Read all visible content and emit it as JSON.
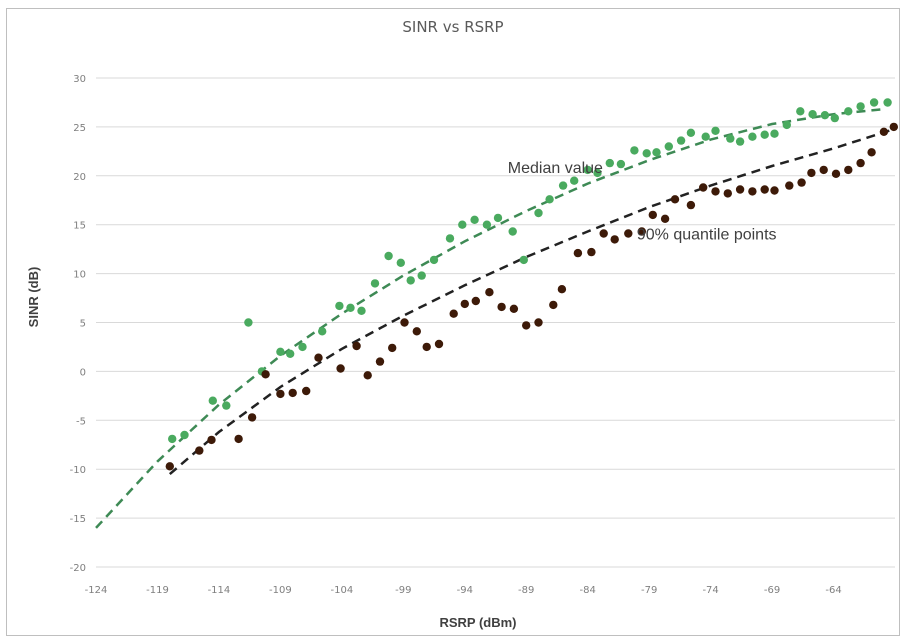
{
  "chart_data": {
    "type": "scatter",
    "title": "SINR vs RSRP",
    "xlabel": "RSRP (dBm)",
    "ylabel": "SINR (dB)",
    "xlim": [
      -124,
      -59
    ],
    "ylim": [
      -20,
      30
    ],
    "x_ticks": [
      -124,
      -119,
      -114,
      -109,
      -104,
      -99,
      -94,
      -89,
      -84,
      -79,
      -74,
      -69,
      -64
    ],
    "y_ticks": [
      -20,
      -15,
      -10,
      -5,
      0,
      5,
      10,
      15,
      20,
      25,
      30
    ],
    "grid": true,
    "annotations": [
      {
        "text": "Median value",
        "x": -90.5,
        "y": 20.3
      },
      {
        "text": "90% quantile points",
        "x": -80,
        "y": 13.5
      }
    ],
    "colors": {
      "median": "#4aaa5f",
      "quantile": "#3d1a08",
      "trend": "#222222",
      "grid": "#d9d9d9"
    },
    "series": [
      {
        "name": "Median value",
        "color": "#4aaa5f",
        "points": [
          [
            -117.8,
            -6.9
          ],
          [
            -116.8,
            -6.5
          ],
          [
            -114.5,
            -3.0
          ],
          [
            -113.4,
            -3.5
          ],
          [
            -111.6,
            5.0
          ],
          [
            -110.5,
            0.0
          ],
          [
            -109.0,
            2.0
          ],
          [
            -108.2,
            1.8
          ],
          [
            -107.2,
            2.5
          ],
          [
            -105.6,
            4.1
          ],
          [
            -104.2,
            6.7
          ],
          [
            -103.3,
            6.5
          ],
          [
            -102.4,
            6.2
          ],
          [
            -101.3,
            9.0
          ],
          [
            -100.2,
            11.8
          ],
          [
            -99.2,
            11.1
          ],
          [
            -98.4,
            9.3
          ],
          [
            -97.5,
            9.8
          ],
          [
            -96.5,
            11.4
          ],
          [
            -95.2,
            13.6
          ],
          [
            -94.2,
            15.0
          ],
          [
            -93.2,
            15.5
          ],
          [
            -92.2,
            15.0
          ],
          [
            -91.3,
            15.7
          ],
          [
            -90.1,
            14.3
          ],
          [
            -89.2,
            11.4
          ],
          [
            -88.0,
            16.2
          ],
          [
            -87.1,
            17.6
          ],
          [
            -86.0,
            19.0
          ],
          [
            -85.1,
            19.5
          ],
          [
            -84.0,
            20.6
          ],
          [
            -83.2,
            20.3
          ],
          [
            -82.2,
            21.3
          ],
          [
            -81.3,
            21.2
          ],
          [
            -80.2,
            22.6
          ],
          [
            -79.2,
            22.3
          ],
          [
            -78.4,
            22.4
          ],
          [
            -77.4,
            23.0
          ],
          [
            -76.4,
            23.6
          ],
          [
            -75.6,
            24.4
          ],
          [
            -74.4,
            24.0
          ],
          [
            -73.6,
            24.6
          ],
          [
            -72.4,
            23.8
          ],
          [
            -71.6,
            23.5
          ],
          [
            -70.6,
            24.0
          ],
          [
            -69.6,
            24.2
          ],
          [
            -68.8,
            24.3
          ],
          [
            -67.8,
            25.2
          ],
          [
            -66.7,
            26.6
          ],
          [
            -65.7,
            26.3
          ],
          [
            -64.7,
            26.2
          ],
          [
            -63.9,
            25.9
          ],
          [
            -62.8,
            26.6
          ],
          [
            -61.8,
            27.1
          ],
          [
            -60.7,
            27.5
          ],
          [
            -59.6,
            27.5
          ]
        ],
        "trend": [
          [
            -124,
            -16
          ],
          [
            -119,
            -9.2
          ],
          [
            -114,
            -3.4
          ],
          [
            -109,
            1.6
          ],
          [
            -104,
            5.9
          ],
          [
            -99,
            9.8
          ],
          [
            -94,
            13.3
          ],
          [
            -89,
            16.4
          ],
          [
            -84,
            19.2
          ],
          [
            -79,
            21.6
          ],
          [
            -74,
            23.7
          ],
          [
            -69,
            25.3
          ],
          [
            -64,
            26.3
          ],
          [
            -60,
            26.8
          ]
        ]
      },
      {
        "name": "90% quantile points",
        "color": "#3d1a08",
        "points": [
          [
            -118.0,
            -9.7
          ],
          [
            -115.6,
            -8.1
          ],
          [
            -114.6,
            -7.0
          ],
          [
            -112.4,
            -6.9
          ],
          [
            -111.3,
            -4.7
          ],
          [
            -110.2,
            -0.3
          ],
          [
            -109.0,
            -2.3
          ],
          [
            -108.0,
            -2.2
          ],
          [
            -106.9,
            -2.0
          ],
          [
            -105.9,
            1.4
          ],
          [
            -104.1,
            0.3
          ],
          [
            -102.8,
            2.6
          ],
          [
            -101.9,
            -0.4
          ],
          [
            -100.9,
            1.0
          ],
          [
            -99.9,
            2.4
          ],
          [
            -98.9,
            5.0
          ],
          [
            -97.9,
            4.1
          ],
          [
            -97.1,
            2.5
          ],
          [
            -96.1,
            2.8
          ],
          [
            -94.9,
            5.9
          ],
          [
            -94.0,
            6.9
          ],
          [
            -93.1,
            7.2
          ],
          [
            -92.0,
            8.1
          ],
          [
            -91.0,
            6.6
          ],
          [
            -90.0,
            6.4
          ],
          [
            -89.0,
            4.7
          ],
          [
            -88.0,
            5.0
          ],
          [
            -86.8,
            6.8
          ],
          [
            -86.1,
            8.4
          ],
          [
            -84.8,
            12.1
          ],
          [
            -83.7,
            12.2
          ],
          [
            -82.7,
            14.1
          ],
          [
            -81.8,
            13.5
          ],
          [
            -80.7,
            14.1
          ],
          [
            -79.6,
            14.3
          ],
          [
            -78.7,
            16.0
          ],
          [
            -77.7,
            15.6
          ],
          [
            -76.9,
            17.6
          ],
          [
            -75.6,
            17.0
          ],
          [
            -74.6,
            18.8
          ],
          [
            -73.6,
            18.4
          ],
          [
            -72.6,
            18.2
          ],
          [
            -71.6,
            18.6
          ],
          [
            -70.6,
            18.4
          ],
          [
            -69.6,
            18.6
          ],
          [
            -68.8,
            18.5
          ],
          [
            -67.6,
            19.0
          ],
          [
            -66.6,
            19.3
          ],
          [
            -65.8,
            20.3
          ],
          [
            -64.8,
            20.6
          ],
          [
            -63.8,
            20.2
          ],
          [
            -62.8,
            20.6
          ],
          [
            -61.8,
            21.3
          ],
          [
            -60.9,
            22.4
          ],
          [
            -59.9,
            24.5
          ],
          [
            -59.1,
            25.0
          ]
        ],
        "trend": [
          [
            -118,
            -10.5
          ],
          [
            -114,
            -6.2
          ],
          [
            -109,
            -1.6
          ],
          [
            -104,
            2.3
          ],
          [
            -99,
            5.7
          ],
          [
            -94,
            8.8
          ],
          [
            -89,
            11.7
          ],
          [
            -84,
            14.3
          ],
          [
            -79,
            16.8
          ],
          [
            -74,
            19.0
          ],
          [
            -69,
            21.0
          ],
          [
            -64,
            22.8
          ],
          [
            -59,
            24.8
          ]
        ]
      }
    ]
  }
}
